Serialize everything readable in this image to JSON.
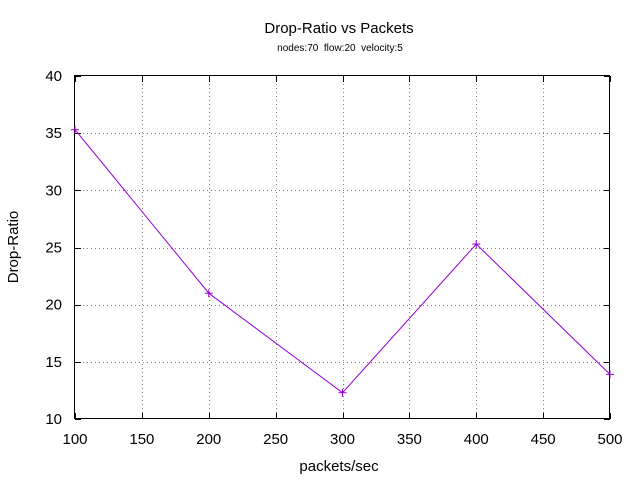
{
  "chart_data": {
    "type": "line",
    "title": "Drop-Ratio vs Packets",
    "subtitle": "nodes:70  flow:20  velocity:5",
    "xlabel": "packets/sec",
    "ylabel": "Drop-Ratio",
    "xlim": [
      100,
      500
    ],
    "ylim": [
      10,
      40
    ],
    "xticks": [
      100,
      150,
      200,
      250,
      300,
      350,
      400,
      450,
      500
    ],
    "yticks": [
      10,
      15,
      20,
      25,
      30,
      35,
      40
    ],
    "grid": true,
    "series": [
      {
        "color": "#9400d3",
        "marker": "plus",
        "x": [
          100,
          200,
          300,
          400,
          500
        ],
        "y": [
          35.3,
          21.0,
          12.3,
          25.3,
          13.9
        ]
      }
    ]
  }
}
